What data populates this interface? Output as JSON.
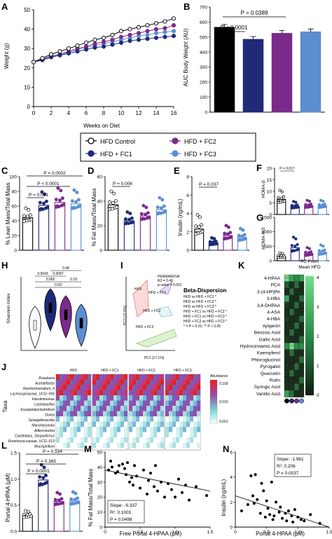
{
  "colors": {
    "control": "#ffffff",
    "fc1": "#1f2a78",
    "fc2": "#7b2a8c",
    "fc3": "#5b8fd0",
    "black": "#000000"
  },
  "legend": {
    "items": [
      "HFD Control",
      "HFD + FC2",
      "HFD + FC1",
      "HFD + FC3"
    ]
  },
  "panels": {
    "A": {
      "letter": "A",
      "ylabel": "Weight (g)",
      "xlabel": "Weeks on Diet"
    },
    "B": {
      "letter": "B",
      "ylabel": "AUC Body Weight (AU)",
      "p1": "P = 0.0389",
      "p2": "P < 0.0001"
    },
    "C": {
      "letter": "C",
      "ylabel": "% Lean Mass/Total Mass",
      "p1": "P = 0.0002",
      "p2": "P < 0.0001",
      "p3": "P = 0.001"
    },
    "D": {
      "letter": "D",
      "ylabel": "% Fat Mass/Total Mass",
      "p1": "P = 0.006"
    },
    "E": {
      "letter": "E",
      "ylabel": "Insulin (ng/mL)",
      "p1": "P = 0.037"
    },
    "F": {
      "letter": "F",
      "ylabel": "HOMA-β",
      "p1": "P = 0.017"
    },
    "G": {
      "letter": "G",
      "ylabel": "HOMA-%S"
    },
    "H": {
      "letter": "H",
      "ylabel": "Shannon index",
      "pvals": [
        "0.48",
        "0.0043",
        "0.0087",
        "0.065",
        "0.18",
        "0.59"
      ]
    },
    "I": {
      "letter": "I",
      "xlabel": "PC1 [17.1%]",
      "ylabel": "PC2 [11.6%]",
      "permanova": [
        "PERMANOVA",
        "R2 = 0.49",
        "p-value = 0.001"
      ],
      "groups": [
        "HFD",
        "HFD + FC1",
        "HFD + FC2",
        "HFD + FC3"
      ],
      "beta_title": "Beta-Dispersion",
      "beta_lines": [
        "HFD vs HFD + FC1 *",
        "HFD vs HFD + FC2 *",
        "HFD vs HFD + FC3 *",
        "HFD + FC1 vs HFD + FC2 *",
        "HFD + FC1 vs HFD + FC3 *",
        "HFD + FC2 vs HFD + FC3 *",
        "* = P < 0.01; ** P < 0.05"
      ]
    },
    "J": {
      "letter": "J",
      "ylabel": "Taxa",
      "groups": [
        "HFD",
        "HFD + FC1",
        "HFD + FC2",
        "HFD + FC3"
      ],
      "scale_title": "Abundance",
      "scale_ticks": [
        "0.100",
        "0.010",
        "0.001"
      ],
      "taxa": [
        "Roseburia",
        "Acetatifactor",
        "Ruminiclostridium_9",
        "Lachnospiraceae_UCG−006",
        "Intestinimonas",
        "Lactobacillus",
        "Erysipelatoclostridium",
        "Dorea",
        "Senegalimassilia",
        "Marvinbryantia",
        "Adlercreutzia",
        "Candidatus_Stoquefichus",
        "Ruminococcaceae_UCG−013",
        "Mucispirillum"
      ]
    },
    "K": {
      "letter": "K",
      "scale_title": "FC From Mean HFD",
      "compounds": [
        "4-HPAA",
        "PCA",
        "3-(4-HP)PA",
        "3-HBA",
        "3,4-DHPAA",
        "4-ASA",
        "4-HBA",
        "Apigenin",
        "Benzoic Acid",
        "Gallic Acid",
        "Hydrocinnamic Acid",
        "Kaempferol",
        "Phloroglucinol",
        "Pyrogallol",
        "Quercetin",
        "Rutin",
        "Syringic Acid",
        "Vanillic Acid"
      ],
      "stars": [
        "***",
        "**",
        "*"
      ]
    },
    "L": {
      "letter": "L",
      "ylabel": "Portal 4-HPAA (μM)",
      "p1": "P = 0.534",
      "p2": "P = 0.365",
      "p3": "P = 0.0001"
    },
    "M": {
      "letter": "M",
      "ylabel": "% Fat Mass/Total Mass",
      "xlabel": "Free Portal 4-HPAA (μM)",
      "stats": [
        "Slope: -9.337",
        "R²: 0.1001",
        "P = 0.0498"
      ]
    },
    "N": {
      "letter": "N",
      "ylabel": "Insulin (ng/mL)",
      "xlabel": "Portal 4-HPAA (μM)",
      "stats": [
        "Slope: -1.961",
        "R²: 0.206",
        "P = 0.0037"
      ]
    }
  },
  "chart_data": [
    {
      "panel": "A",
      "type": "line",
      "xlabel": "Weeks on Diet",
      "ylabel": "Weight (g)",
      "ylim": [
        0,
        50
      ],
      "xlim": [
        0,
        16
      ],
      "x": [
        0,
        1,
        2,
        3,
        4,
        5,
        6,
        7,
        8,
        9,
        10,
        11,
        12,
        13,
        14,
        15,
        16
      ],
      "series": [
        {
          "name": "HFD Control",
          "values": [
            23,
            25,
            27,
            28.5,
            30,
            31.5,
            33,
            34.5,
            35.5,
            37,
            39,
            40,
            41,
            42,
            43,
            44,
            45.5
          ]
        },
        {
          "name": "HFD + FC1",
          "values": [
            23,
            24,
            25.5,
            26.5,
            27.5,
            28.5,
            29.5,
            30.5,
            31,
            32,
            33,
            34,
            34.5,
            35,
            35.5,
            36,
            36.5
          ]
        },
        {
          "name": "HFD + FC2",
          "values": [
            23,
            24.5,
            26,
            27,
            28.5,
            30,
            31,
            32.5,
            33.5,
            34.5,
            36,
            37,
            38,
            39,
            40,
            40.5,
            42
          ]
        },
        {
          "name": "HFD + FC3",
          "values": [
            23,
            24.5,
            26,
            27,
            28,
            29.5,
            30.5,
            31.5,
            32.5,
            33.5,
            34.5,
            35.5,
            36.5,
            37,
            38,
            38.5,
            39
          ]
        }
      ]
    },
    {
      "panel": "B",
      "type": "bar",
      "ylabel": "AUC Body Weight (AU)",
      "ylim": [
        0,
        700
      ],
      "categories": [
        "HFD Control",
        "HFD + FC1",
        "HFD + FC2",
        "HFD + FC3"
      ],
      "values": [
        565,
        485,
        525,
        535
      ]
    },
    {
      "panel": "C",
      "type": "bar",
      "ylabel": "% Lean Mass/Total Mass",
      "ylim": [
        0,
        100
      ],
      "categories": [
        "HFD Control",
        "HFD + FC1",
        "HFD + FC2",
        "HFD + FC3"
      ],
      "values": [
        44,
        61,
        65,
        63
      ]
    },
    {
      "panel": "D",
      "type": "bar",
      "ylabel": "% Fat Mass/Total Mass",
      "ylim": [
        0,
        60
      ],
      "categories": [
        "HFD Control",
        "HFD + FC1",
        "HFD + FC2",
        "HFD + FC3"
      ],
      "values": [
        37,
        24,
        28,
        33
      ]
    },
    {
      "panel": "E",
      "type": "bar",
      "ylabel": "Insulin (ng/mL)",
      "ylim": [
        0,
        8
      ],
      "categories": [
        "HFD Control",
        "HFD + FC1",
        "HFD + FC2",
        "HFD + FC3"
      ],
      "values": [
        2.3,
        0.8,
        1.6,
        1.4
      ]
    },
    {
      "panel": "F",
      "type": "bar",
      "ylabel": "HOMA-β",
      "ylim": [
        0,
        20
      ],
      "categories": [
        "HFD Control",
        "HFD + FC1",
        "HFD + FC2",
        "HFD + FC3"
      ],
      "values": [
        6.5,
        3.5,
        3.8,
        3.8
      ]
    },
    {
      "panel": "G",
      "type": "bar",
      "ylabel": "HOMA-%S",
      "ylim": [
        0,
        1500
      ],
      "categories": [
        "HFD Control",
        "HFD + FC1",
        "HFD + FC2",
        "HFD + FC3"
      ],
      "values": [
        150,
        450,
        250,
        300
      ]
    },
    {
      "panel": "L",
      "type": "bar",
      "ylabel": "Portal 4-HPAA (μM)",
      "ylim": [
        0,
        1.5
      ],
      "categories": [
        "HFD Control",
        "HFD + FC1",
        "HFD + FC2",
        "HFD + FC3"
      ],
      "values": [
        0.3,
        0.98,
        0.57,
        0.58
      ]
    },
    {
      "panel": "M",
      "type": "scatter",
      "xlabel": "Free Portal 4-HPAA (μM)",
      "ylabel": "% Fat Mass/Total Mass",
      "xlim": [
        0,
        1.5
      ],
      "ylim": [
        0,
        50
      ],
      "points": [
        [
          0.05,
          38
        ],
        [
          0.08,
          44
        ],
        [
          0.1,
          40
        ],
        [
          0.15,
          36
        ],
        [
          0.18,
          37
        ],
        [
          0.2,
          41
        ],
        [
          0.25,
          42
        ],
        [
          0.28,
          39
        ],
        [
          0.3,
          35
        ],
        [
          0.32,
          43
        ],
        [
          0.35,
          30
        ],
        [
          0.38,
          33
        ],
        [
          0.4,
          28
        ],
        [
          0.42,
          41
        ],
        [
          0.45,
          34
        ],
        [
          0.5,
          26
        ],
        [
          0.55,
          38
        ],
        [
          0.6,
          22
        ],
        [
          0.62,
          31
        ],
        [
          0.65,
          36
        ],
        [
          0.7,
          27
        ],
        [
          0.72,
          41
        ],
        [
          0.75,
          24
        ],
        [
          0.8,
          30
        ],
        [
          0.85,
          20
        ],
        [
          0.9,
          29
        ],
        [
          0.95,
          25
        ],
        [
          1.0,
          20
        ],
        [
          1.05,
          32
        ],
        [
          1.1,
          23
        ],
        [
          1.15,
          28
        ],
        [
          1.2,
          18
        ],
        [
          1.3,
          27
        ],
        [
          1.45,
          21
        ]
      ],
      "fit": {
        "slope": -9.337,
        "intercept": 38
      }
    },
    {
      "panel": "N",
      "type": "scatter",
      "xlabel": "Portal 4-HPAA (μM)",
      "ylabel": "Insulin (ng/mL)",
      "xlim": [
        0,
        1.5
      ],
      "ylim": [
        0,
        6
      ],
      "points": [
        [
          0.1,
          1.3
        ],
        [
          0.2,
          1.8
        ],
        [
          0.25,
          4.1
        ],
        [
          0.28,
          2.5
        ],
        [
          0.3,
          1.9
        ],
        [
          0.32,
          4.2
        ],
        [
          0.35,
          2.2
        ],
        [
          0.4,
          1.1
        ],
        [
          0.42,
          3.5
        ],
        [
          0.45,
          2.9
        ],
        [
          0.48,
          0.8
        ],
        [
          0.5,
          2.1
        ],
        [
          0.52,
          1.5
        ],
        [
          0.55,
          1.0
        ],
        [
          0.58,
          3.6
        ],
        [
          0.6,
          0.6
        ],
        [
          0.62,
          0.9
        ],
        [
          0.65,
          2.0
        ],
        [
          0.7,
          1.2
        ],
        [
          0.72,
          1.6
        ],
        [
          0.75,
          0.7
        ],
        [
          0.8,
          1.1
        ],
        [
          0.82,
          0.5
        ],
        [
          0.85,
          1.3
        ],
        [
          0.9,
          0.9
        ],
        [
          0.92,
          0.4
        ],
        [
          0.95,
          1.4
        ],
        [
          1.0,
          0.8
        ],
        [
          1.05,
          0.6
        ],
        [
          1.1,
          0.5
        ],
        [
          1.2,
          1.0
        ],
        [
          1.35,
          0.3
        ]
      ],
      "fit": {
        "slope": -1.961,
        "intercept": 2.5
      }
    }
  ]
}
